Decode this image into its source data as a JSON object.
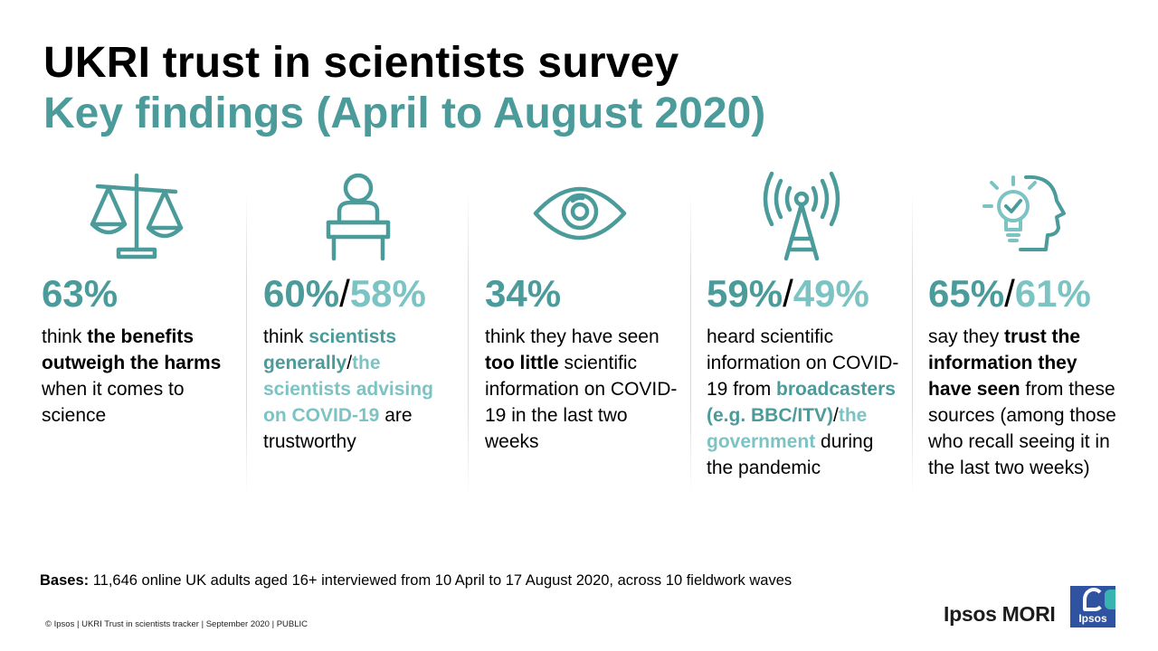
{
  "header": {
    "title": "UKRI trust in scientists survey",
    "subtitle": "Key findings (April to August 2020)"
  },
  "findings": [
    {
      "icon": "scales-icon",
      "stat_primary": "63%",
      "lines": [
        {
          "t": "think ",
          "s": "n"
        },
        {
          "t": "the benefits outweigh the harms",
          "s": "b"
        },
        {
          "t": " when it comes to science",
          "s": "n"
        }
      ]
    },
    {
      "icon": "scientist-at-desk-icon",
      "stat_primary": "60%",
      "stat_sep": "/",
      "stat_secondary": "58%",
      "lines": [
        {
          "t": "think ",
          "s": "n"
        },
        {
          "t": "scientists generally",
          "s": "t1"
        },
        {
          "t": "/",
          "s": "n"
        },
        {
          "t": "the scientists advising on COVID-19",
          "s": "t2"
        },
        {
          "t": " are trustworthy",
          "s": "n"
        }
      ]
    },
    {
      "icon": "eye-icon",
      "stat_primary": "34%",
      "lines": [
        {
          "t": "think they have seen ",
          "s": "n"
        },
        {
          "t": "too little",
          "s": "b"
        },
        {
          "t": " scientific information on COVID-19 in the last two weeks",
          "s": "n"
        }
      ]
    },
    {
      "icon": "broadcast-tower-icon",
      "stat_primary": "59%",
      "stat_sep": "/",
      "stat_secondary": "49%",
      "lines": [
        {
          "t": "heard scientific information on COVID-19 from ",
          "s": "n"
        },
        {
          "t": "broadcasters (e.g. BBC/ITV)",
          "s": "t1"
        },
        {
          "t": "/",
          "s": "n"
        },
        {
          "t": "the government",
          "s": "t2"
        },
        {
          "t": " during the pandemic",
          "s": "n"
        }
      ]
    },
    {
      "icon": "head-lightbulb-icon",
      "stat_primary": "65%",
      "stat_sep": "/",
      "stat_secondary": "61%",
      "lines": [
        {
          "t": "say they ",
          "s": "n"
        },
        {
          "t": "trust the information they have seen",
          "s": "b"
        },
        {
          "t": " from these sources (among those who recall seeing it in the last two weeks)",
          "s": "n"
        }
      ]
    }
  ],
  "bases": {
    "label": "Bases:",
    "text": " 11,646 online UK adults aged 16+ interviewed from 10 April to 17 August 2020, across 10 fieldwork waves"
  },
  "footer": "© Ipsos | UKRI  Trust in scientists tracker | September 2020 | PUBLIC",
  "logo": {
    "text": "Ipsos MORI",
    "badge": "Ipsos"
  },
  "colors": {
    "teal_dark": "#4b9b9b",
    "teal_light": "#7cc3c3",
    "logo_blue": "#2f53a0",
    "logo_teal": "#39b3b0"
  }
}
